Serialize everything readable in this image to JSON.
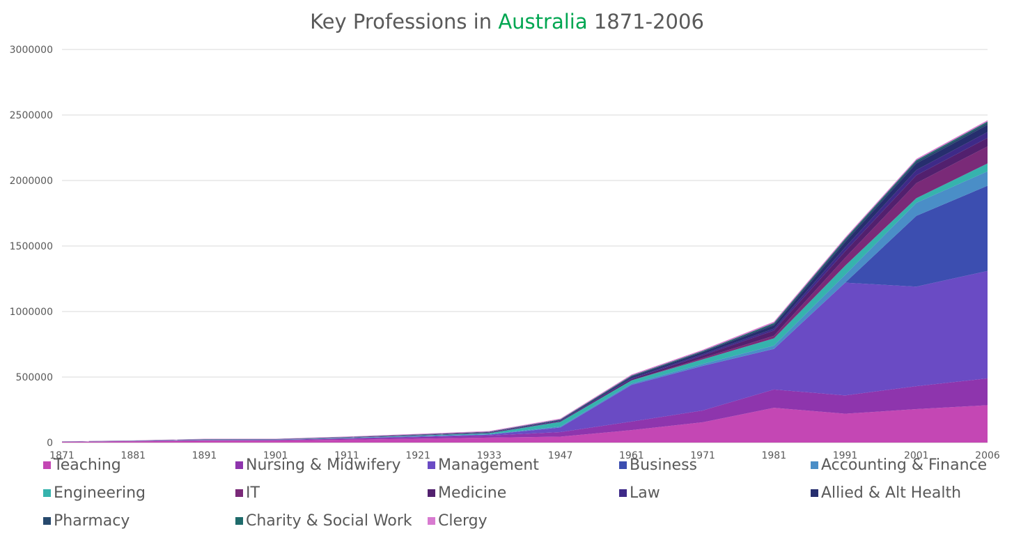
{
  "chart_data": {
    "type": "area",
    "stacked": true,
    "title_parts": [
      "Key Professions in ",
      "Australia",
      " 1871-2006"
    ],
    "title_accent_color": "#00a651",
    "categories": [
      "1871",
      "1881",
      "1891",
      "1901",
      "1911",
      "1921",
      "1933",
      "1947",
      "1961",
      "1971",
      "1981",
      "1991",
      "2001",
      "2006"
    ],
    "ylim": [
      0,
      3000000
    ],
    "yticks": [
      "0",
      "500000",
      "1000000",
      "1500000",
      "2000000",
      "2500000",
      "3000000"
    ],
    "grid": true,
    "legend_position": "bottom",
    "series": [
      {
        "name": "Teaching",
        "color": "#c447b4",
        "values": [
          5000,
          9000,
          14000,
          15000,
          22000,
          30000,
          38000,
          45000,
          95000,
          155000,
          265000,
          220000,
          255000,
          285000
        ]
      },
      {
        "name": "Nursing & Midwifery",
        "color": "#8e35ad",
        "values": [
          1000,
          2000,
          4000,
          4000,
          8000,
          12000,
          16000,
          35000,
          65000,
          90000,
          140000,
          140000,
          175000,
          205000
        ]
      },
      {
        "name": "Management",
        "color": "#6a4bc4",
        "values": [
          500,
          1000,
          2000,
          2000,
          3000,
          5000,
          7000,
          35000,
          280000,
          340000,
          310000,
          860000,
          760000,
          820000
        ]
      },
      {
        "name": "Business",
        "color": "#3c4eb0",
        "values": [
          0,
          0,
          0,
          0,
          0,
          0,
          0,
          0,
          0,
          0,
          0,
          0,
          540000,
          650000
        ]
      },
      {
        "name": "Accounting & Finance",
        "color": "#4a8ec7",
        "values": [
          300,
          500,
          800,
          900,
          1200,
          2000,
          3000,
          8000,
          10000,
          15000,
          25000,
          60000,
          100000,
          110000
        ]
      },
      {
        "name": "Engineering",
        "color": "#36b3ad",
        "values": [
          500,
          800,
          1500,
          1500,
          3000,
          5000,
          8000,
          35000,
          25000,
          35000,
          55000,
          70000,
          35000,
          60000
        ]
      },
      {
        "name": "IT",
        "color": "#7a2a78",
        "values": [
          0,
          0,
          0,
          0,
          0,
          0,
          0,
          0,
          0,
          10000,
          20000,
          60000,
          115000,
          130000
        ]
      },
      {
        "name": "Medicine",
        "color": "#52206e",
        "values": [
          500,
          700,
          1500,
          1500,
          2000,
          3000,
          3500,
          5000,
          10000,
          20000,
          40000,
          50000,
          60000,
          65000
        ]
      },
      {
        "name": "Law",
        "color": "#3e2a88",
        "values": [
          300,
          500,
          1000,
          1000,
          1500,
          2000,
          2500,
          4000,
          7000,
          10000,
          15000,
          30000,
          40000,
          45000
        ]
      },
      {
        "name": "Allied & Alt Health",
        "color": "#262e6e",
        "values": [
          200,
          400,
          800,
          800,
          1200,
          1800,
          2500,
          5000,
          10000,
          15000,
          25000,
          40000,
          50000,
          55000
        ]
      },
      {
        "name": "Pharmacy",
        "color": "#27496d",
        "values": [
          200,
          300,
          600,
          600,
          800,
          1000,
          1500,
          3000,
          5000,
          5000,
          10000,
          15000,
          15000,
          15000
        ]
      },
      {
        "name": "Charity & Social Work",
        "color": "#1f6b6b",
        "values": [
          0,
          0,
          200,
          200,
          300,
          500,
          800,
          2000,
          4000,
          5000,
          8000,
          10000,
          10000,
          10000
        ]
      },
      {
        "name": "Clergy",
        "color": "#d87bd0",
        "values": [
          1000,
          1500,
          2000,
          2000,
          3000,
          4000,
          5000,
          6000,
          8000,
          8000,
          10000,
          10000,
          10000,
          10000
        ]
      }
    ]
  }
}
